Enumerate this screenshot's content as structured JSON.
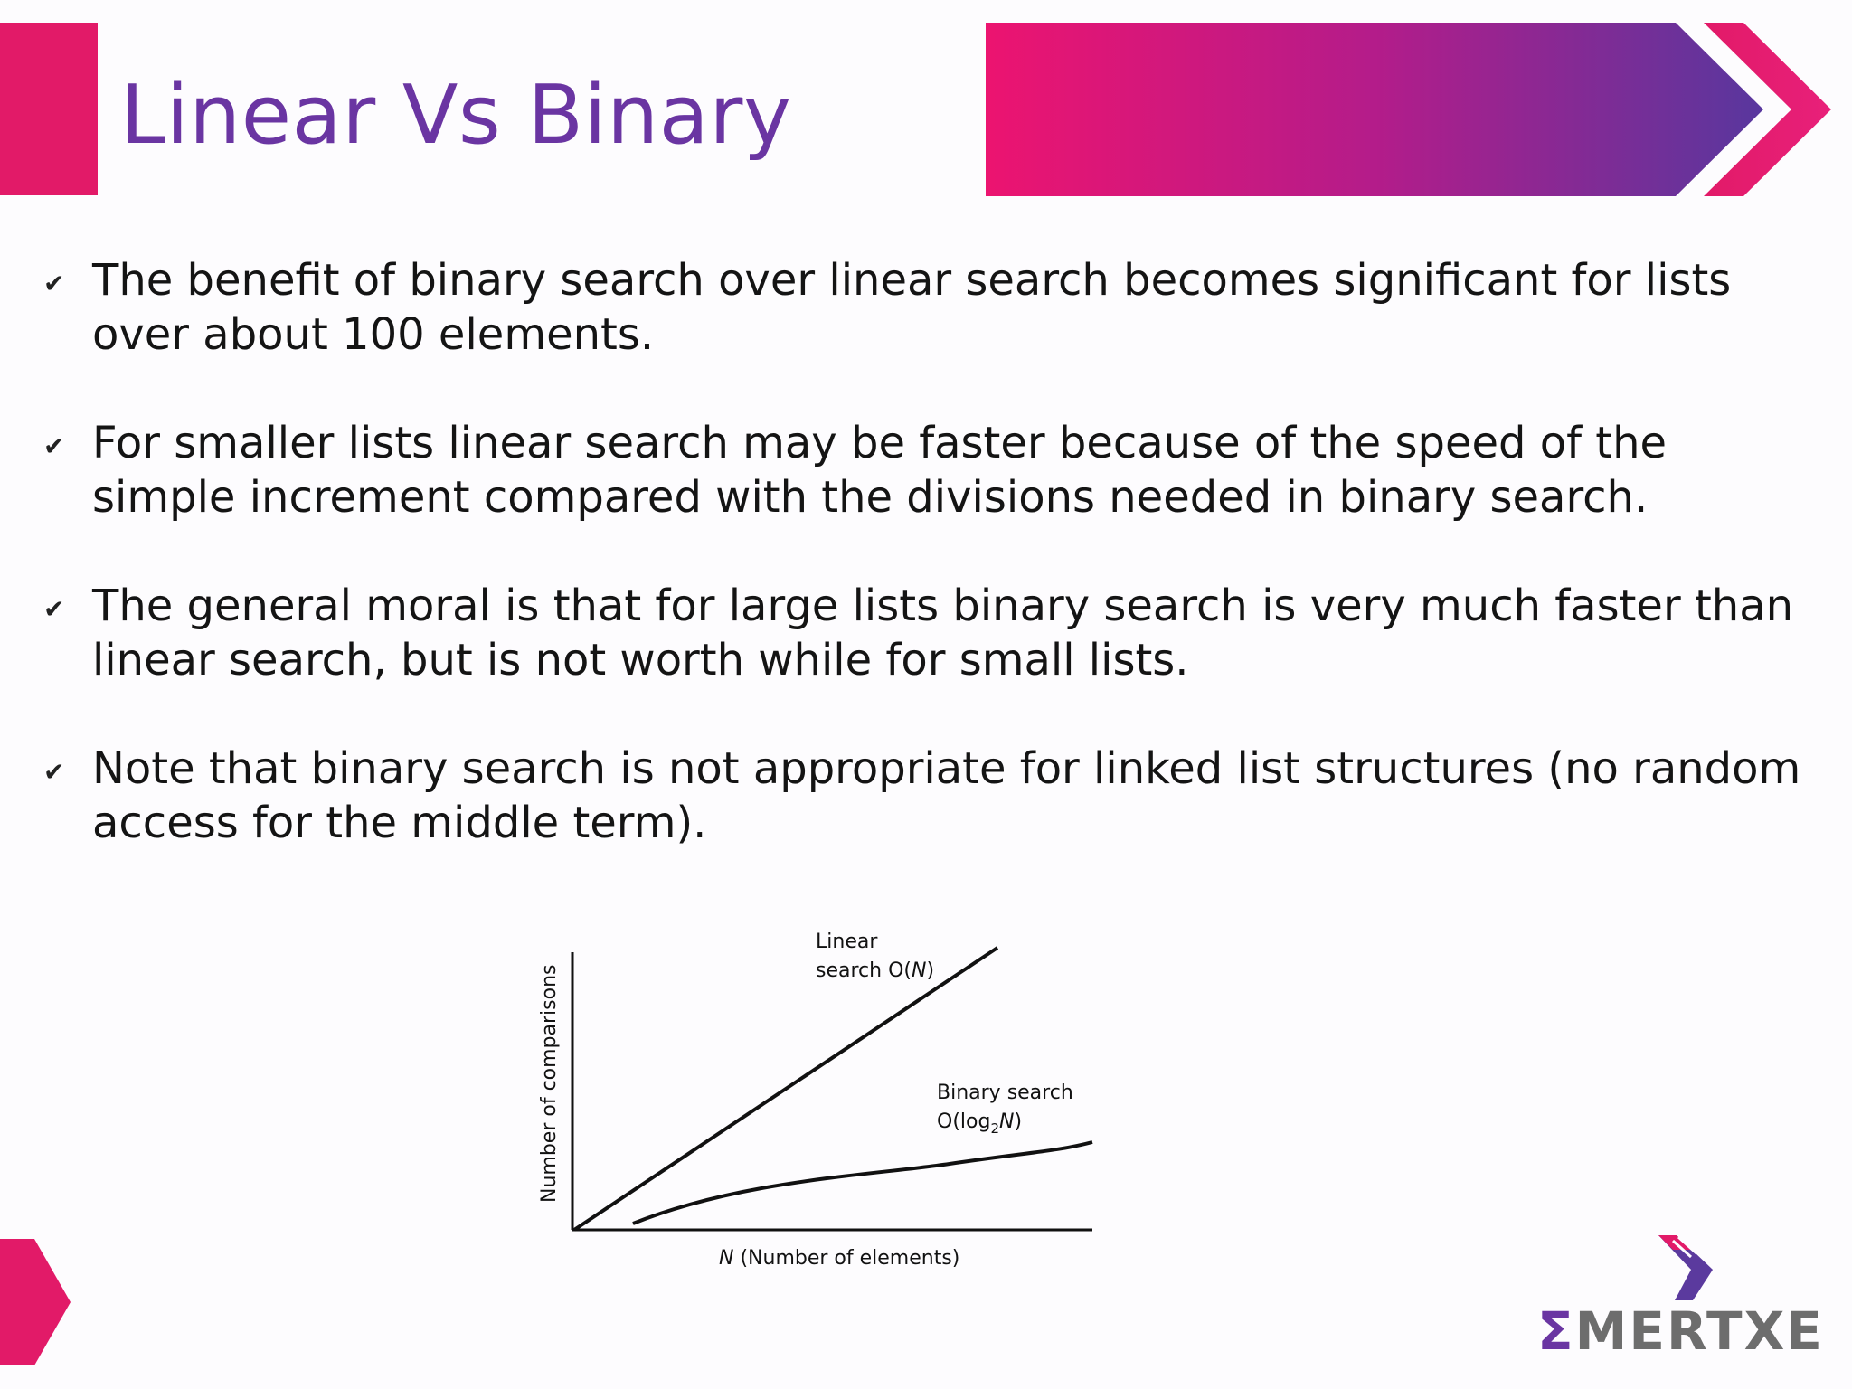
{
  "slide": {
    "title": "Linear Vs Binary",
    "bullets": [
      {
        "text": "The benefit of binary search over linear search becomes significant for lists over about 100 elements."
      },
      {
        "text": "For smaller lists linear search may be faster because of the speed of the simple increment compared with the divisions needed in binary search."
      },
      {
        "text": "The general moral is that for large lists binary search is very much faster than linear search, but is not worth while for small lists."
      },
      {
        "text": "Note that binary search is not appropriate for linked list structures (no random access for the middle term)."
      }
    ],
    "bullet_icon": "checkmark-icon"
  },
  "figure": {
    "ylabel": "Number of comparisons",
    "xlabel_var": "N",
    "xlabel_rest": " (Number of elements)",
    "linear_label_line1": "Linear",
    "linear_label_line2_prefix": "search O(",
    "linear_label_line2_var": "N",
    "linear_label_line2_suffix": ")",
    "binary_label_line1": "Binary search",
    "binary_label_line2_prefix": "O(log",
    "binary_label_line2_sub": "2",
    "binary_label_line2_var": "N",
    "binary_label_line2_suffix": ")"
  },
  "logo": {
    "sigma": "Σ",
    "text": "MERTXE"
  },
  "colors": {
    "title": "#6a35a2",
    "accent_pink": "#e21a68",
    "accent_purple": "#5b3a9e",
    "text": "#141414"
  }
}
